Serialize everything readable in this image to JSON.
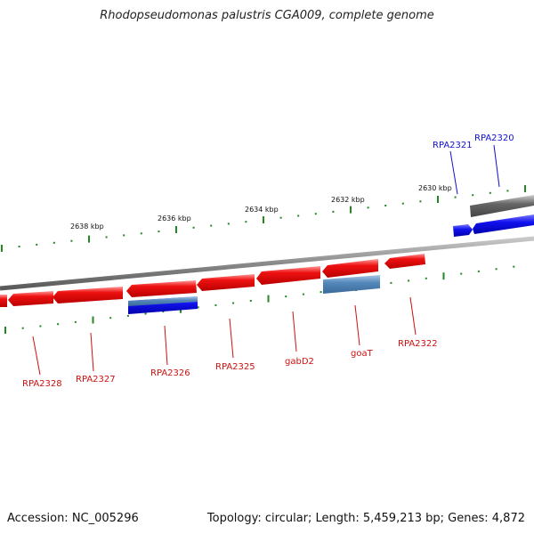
{
  "title": "Rhodopseudomonas palustris CGA009, complete genome",
  "footer": {
    "accession": "Accession: NC_005296",
    "stats": "Topology: circular; Length: 5,459,213 bp; Genes: 4,872"
  },
  "colors": {
    "forward_gene": "#ee1111",
    "reverse_gene": "#1111ee",
    "gray_feature": "#666666",
    "light_blue_feature": "#5588bb",
    "backbone": "#888888",
    "ticks": "#228822",
    "label_red": "#cc1111",
    "label_blue": "#1111cc"
  },
  "scale_labels": [
    "2630 kbp",
    "2632 kbp",
    "2634 kbp",
    "2636 kbp",
    "2638 kbp"
  ],
  "gene_labels": {
    "rpa2320": "RPA2320",
    "rpa2321": "RPA2321",
    "rpa2322": "RPA2322",
    "goat": "goaT",
    "gabd2": "gabD2",
    "rpa2325": "RPA2325",
    "rpa2326": "RPA2326",
    "rpa2327": "RPA2327",
    "rpa2328": "RPA2328"
  }
}
